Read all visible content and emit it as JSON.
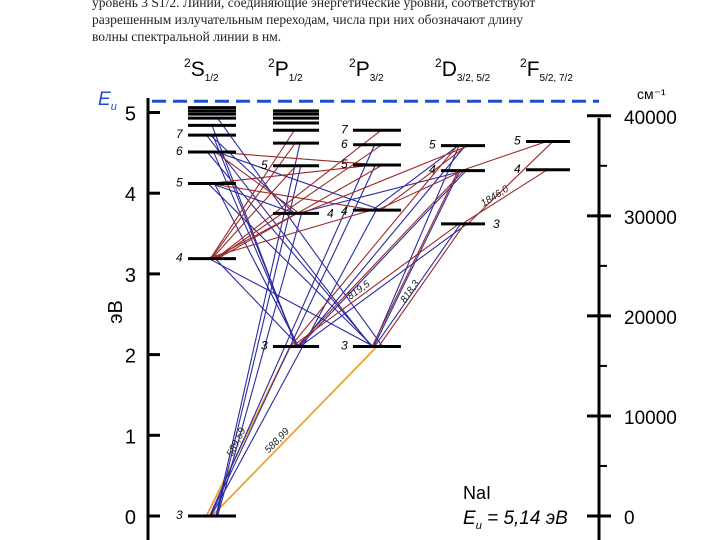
{
  "caption": {
    "lines": [
      "уровень 3 S1/2. Линии, соединяющие энергетические уровни, соответствуют",
      "разрешенным излучательным переходам, числа при них обозначают длину",
      "волны спектральной линии в нм."
    ]
  },
  "columns": [
    {
      "id": "S",
      "prefix": "2",
      "letter": "S",
      "sub": "1/2"
    },
    {
      "id": "P1",
      "prefix": "2",
      "letter": "P",
      "sub": "1/2"
    },
    {
      "id": "P3",
      "prefix": "2",
      "letter": "P",
      "sub": "3/2"
    },
    {
      "id": "D",
      "prefix": "2",
      "letter": "D",
      "sub": "3/2, 5/2"
    },
    {
      "id": "F",
      "prefix": "2",
      "letter": "F",
      "sub": "5/2, 7/2"
    }
  ],
  "left_axis": {
    "label": "эВ",
    "ticks": [
      "0",
      "1",
      "2",
      "3",
      "4",
      "5"
    ],
    "range": [
      0,
      5.14
    ]
  },
  "right_axis": {
    "unit": "см⁻¹",
    "ticks": [
      "0",
      "10000",
      "20000",
      "30000",
      "40000"
    ],
    "tick_values": [
      0,
      10000,
      20000,
      30000,
      40000
    ]
  },
  "ionization": {
    "label_letter": "E",
    "label_sub": "и",
    "energy_ev": 5.14,
    "color": "#1f4fd1"
  },
  "element": {
    "name": "NaI",
    "formula_letter": "E",
    "formula_sub": "и",
    "formula_rest": " = 5,14 эВ"
  },
  "levels": [
    {
      "id": "S3",
      "col": "S",
      "n": "3",
      "ev": 0.0
    },
    {
      "id": "S4",
      "col": "S",
      "n": "4",
      "ev": 3.19
    },
    {
      "id": "S5",
      "col": "S",
      "n": "5",
      "ev": 4.12
    },
    {
      "id": "S6",
      "col": "S",
      "n": "6",
      "ev": 4.51
    },
    {
      "id": "S7",
      "col": "S",
      "n": "7",
      "ev": 4.72
    },
    {
      "id": "S8",
      "col": "S",
      "n": "",
      "ev": 4.84
    },
    {
      "id": "S9",
      "col": "S",
      "n": "",
      "ev": 4.93
    },
    {
      "id": "S10",
      "col": "S",
      "n": "",
      "ev": 4.98
    },
    {
      "id": "S11",
      "col": "S",
      "n": "",
      "ev": 5.02
    },
    {
      "id": "S12",
      "col": "S",
      "n": "",
      "ev": 5.06
    },
    {
      "id": "P1_3",
      "col": "P1",
      "n": "3",
      "ev": 2.1
    },
    {
      "id": "P1_4",
      "col": "P1",
      "n": "4",
      "ev": 3.75
    },
    {
      "id": "P1_5",
      "col": "P1",
      "n": "5",
      "ev": 4.34
    },
    {
      "id": "P1_6",
      "col": "P1",
      "n": "",
      "ev": 4.62
    },
    {
      "id": "P1_7",
      "col": "P1",
      "n": "",
      "ev": 4.78
    },
    {
      "id": "P1_8",
      "col": "P1",
      "n": "",
      "ev": 4.87
    },
    {
      "id": "P1_9",
      "col": "P1",
      "n": "",
      "ev": 4.93
    },
    {
      "id": "P1_10",
      "col": "P1",
      "n": "",
      "ev": 4.98
    },
    {
      "id": "P1_11",
      "col": "P1",
      "n": "",
      "ev": 5.02
    },
    {
      "id": "P3_3",
      "col": "P3",
      "n": "3",
      "ev": 2.1
    },
    {
      "id": "P3_4",
      "col": "P3",
      "n": "4",
      "ev": 3.79
    },
    {
      "id": "P3_5",
      "col": "P3",
      "n": "5",
      "ev": 4.35
    },
    {
      "id": "P3_6",
      "col": "P3",
      "n": "6",
      "ev": 4.6
    },
    {
      "id": "P3_7",
      "col": "P3",
      "n": "7",
      "ev": 4.78
    },
    {
      "id": "D3",
      "col": "D",
      "n": "3",
      "ev": 3.62
    },
    {
      "id": "D4",
      "col": "D",
      "n": "4",
      "ev": 4.28
    },
    {
      "id": "D5",
      "col": "D",
      "n": "5",
      "ev": 4.59
    },
    {
      "id": "F4",
      "col": "F",
      "n": "4",
      "ev": 4.29
    },
    {
      "id": "F5",
      "col": "F",
      "n": "5",
      "ev": 4.64
    }
  ],
  "transitions": [
    {
      "from": "S3",
      "to": "P1_3",
      "kind": "orange",
      "label": "589,59"
    },
    {
      "from": "S3",
      "to": "P3_3",
      "kind": "orange",
      "label": "588,99"
    },
    {
      "from": "S3",
      "to": "P1_4",
      "kind": "blue"
    },
    {
      "from": "S3",
      "to": "P3_4",
      "kind": "blue"
    },
    {
      "from": "S3",
      "to": "P1_5",
      "kind": "blue"
    },
    {
      "from": "S3",
      "to": "P3_5",
      "kind": "blue"
    },
    {
      "from": "S3",
      "to": "P1_6",
      "kind": "blue"
    },
    {
      "from": "S3",
      "to": "P3_6",
      "kind": "blue"
    },
    {
      "from": "S4",
      "to": "P1_3",
      "kind": "blue"
    },
    {
      "from": "S4",
      "to": "P3_3",
      "kind": "blue"
    },
    {
      "from": "S5",
      "to": "P1_3",
      "kind": "blue"
    },
    {
      "from": "S5",
      "to": "P3_3",
      "kind": "blue"
    },
    {
      "from": "S6",
      "to": "P1_3",
      "kind": "blue"
    },
    {
      "from": "S6",
      "to": "P3_3",
      "kind": "blue"
    },
    {
      "from": "S7",
      "to": "P1_3",
      "kind": "blue"
    },
    {
      "from": "S7",
      "to": "P3_3",
      "kind": "blue"
    },
    {
      "from": "S8",
      "to": "P1_3",
      "kind": "blue"
    },
    {
      "from": "S9",
      "to": "P3_3",
      "kind": "blue"
    },
    {
      "from": "S5",
      "to": "P1_4",
      "kind": "blue"
    },
    {
      "from": "S6",
      "to": "P3_4",
      "kind": "blue"
    },
    {
      "from": "S7",
      "to": "P1_4",
      "kind": "blue"
    },
    {
      "from": "D3",
      "to": "P1_3",
      "kind": "blue"
    },
    {
      "from": "D3",
      "to": "P3_3",
      "kind": "blue"
    },
    {
      "from": "D4",
      "to": "P1_3",
      "kind": "blue"
    },
    {
      "from": "D4",
      "to": "P3_3",
      "kind": "blue"
    },
    {
      "from": "D5",
      "to": "P1_3",
      "kind": "blue"
    },
    {
      "from": "D5",
      "to": "P3_3",
      "kind": "blue"
    },
    {
      "from": "D4",
      "to": "P1_4",
      "kind": "blue"
    },
    {
      "from": "D5",
      "to": "P3_4",
      "kind": "blue"
    },
    {
      "from": "S4",
      "to": "P1_4",
      "kind": "red"
    },
    {
      "from": "S4",
      "to": "P3_4",
      "kind": "red"
    },
    {
      "from": "S4",
      "to": "P1_5",
      "kind": "red"
    },
    {
      "from": "S4",
      "to": "P3_5",
      "kind": "red"
    },
    {
      "from": "S4",
      "to": "P1_6",
      "kind": "red"
    },
    {
      "from": "S4",
      "to": "P3_6",
      "kind": "red"
    },
    {
      "from": "S4",
      "to": "P1_7",
      "kind": "red"
    },
    {
      "from": "S4",
      "to": "P3_7",
      "kind": "red"
    },
    {
      "from": "S5",
      "to": "P3_4",
      "kind": "red"
    },
    {
      "from": "S6",
      "to": "P1_4",
      "kind": "red"
    },
    {
      "from": "S5",
      "to": "P3_5",
      "kind": "red"
    },
    {
      "from": "S6",
      "to": "P3_5",
      "kind": "red"
    },
    {
      "from": "P1_3",
      "to": "D3",
      "kind": "red",
      "label": "819,5"
    },
    {
      "from": "P3_3",
      "to": "D3",
      "kind": "red",
      "label": "818,3"
    },
    {
      "from": "P3_3",
      "to": "D4",
      "kind": "red"
    },
    {
      "from": "P1_3",
      "to": "D4",
      "kind": "red"
    },
    {
      "from": "P1_3",
      "to": "D5",
      "kind": "red"
    },
    {
      "from": "P3_4",
      "to": "D4",
      "kind": "red"
    },
    {
      "from": "P1_4",
      "to": "D5",
      "kind": "red"
    },
    {
      "from": "D3",
      "to": "F4",
      "kind": "red",
      "label": "1846,0"
    },
    {
      "from": "D3",
      "to": "F5",
      "kind": "red"
    },
    {
      "from": "D4",
      "to": "F5",
      "kind": "red"
    },
    {
      "from": "P3_4",
      "to": "D5",
      "kind": "red"
    }
  ],
  "colors": {
    "blue": "#2a2aa0",
    "red": "#9a2a2a",
    "orange": "#f0a030",
    "level": "#000000",
    "dashed": "#1f4fd1"
  }
}
